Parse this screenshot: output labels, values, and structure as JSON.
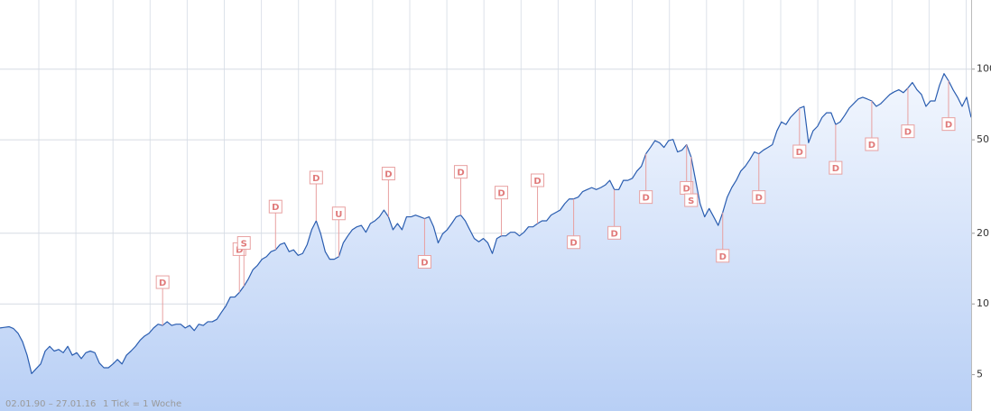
{
  "chart_data": {
    "type": "line",
    "log_scale": true,
    "grid": true,
    "color": "#2a5db0",
    "ylim": [
      3.5,
      197
    ],
    "yticks": [
      5,
      10,
      20,
      50,
      100
    ],
    "period": "02.01.90 – 27.01.16",
    "tick_note": "1 Tick = 1 Woche",
    "values": [
      7.9,
      7.95,
      8.0,
      7.85,
      7.5,
      6.9,
      6.05,
      5.05,
      5.3,
      5.55,
      6.3,
      6.6,
      6.3,
      6.4,
      6.2,
      6.6,
      6.05,
      6.2,
      5.85,
      6.2,
      6.3,
      6.2,
      5.6,
      5.35,
      5.35,
      5.55,
      5.8,
      5.55,
      6.05,
      6.3,
      6.6,
      7.0,
      7.3,
      7.5,
      7.9,
      8.2,
      8.1,
      8.4,
      8.1,
      8.2,
      8.2,
      7.9,
      8.1,
      7.7,
      8.2,
      8.1,
      8.4,
      8.4,
      8.6,
      9.2,
      9.8,
      10.7,
      10.7,
      11.2,
      11.9,
      12.8,
      14.0,
      14.6,
      15.5,
      15.9,
      16.7,
      17.0,
      17.9,
      18.2,
      16.7,
      17.0,
      16.1,
      16.4,
      17.9,
      20.7,
      22.6,
      19.9,
      16.7,
      15.5,
      15.5,
      15.9,
      18.2,
      19.5,
      20.7,
      21.3,
      21.6,
      20.2,
      22.0,
      22.6,
      23.5,
      25.1,
      23.5,
      20.7,
      22.0,
      20.7,
      23.5,
      23.5,
      23.9,
      23.5,
      23.1,
      23.5,
      21.3,
      18.2,
      19.9,
      20.7,
      22.0,
      23.5,
      23.9,
      22.6,
      20.7,
      19.0,
      18.4,
      19.0,
      18.2,
      16.4,
      19.0,
      19.5,
      19.5,
      20.2,
      20.2,
      19.5,
      20.2,
      21.3,
      21.3,
      22.0,
      22.6,
      22.6,
      23.9,
      24.5,
      25.1,
      26.7,
      28.0,
      28.0,
      28.5,
      30.1,
      30.7,
      31.3,
      30.7,
      31.3,
      32.1,
      33.6,
      30.7,
      30.7,
      33.6,
      33.6,
      34.3,
      36.8,
      38.6,
      43.6,
      46.4,
      49.6,
      48.6,
      46.4,
      49.6,
      50.2,
      44.4,
      45.2,
      47.7,
      42.3,
      33.6,
      26.7,
      23.5,
      25.5,
      23.5,
      21.6,
      24.5,
      28.5,
      31.3,
      33.6,
      36.8,
      38.6,
      41.2,
      44.4,
      43.6,
      45.2,
      46.4,
      47.7,
      54.6,
      59.6,
      58.1,
      62.3,
      65.2,
      68.2,
      69.4,
      48.6,
      54.6,
      57.1,
      62.3,
      65.2,
      65.2,
      58.1,
      59.6,
      63.5,
      68.2,
      71.3,
      74.6,
      75.9,
      74.6,
      73.2,
      69.4,
      71.3,
      74.6,
      78.0,
      80.1,
      81.7,
      79.4,
      83.1,
      87.7,
      81.7,
      78.0,
      69.4,
      73.2,
      73.2,
      85.4,
      95.7,
      89.2,
      81.7,
      75.9,
      69.4,
      75.9,
      62.3
    ],
    "events": [
      {
        "label": "D",
        "index": 36,
        "side": "up"
      },
      {
        "label": "D",
        "index": 53,
        "side": "up"
      },
      {
        "label": "S",
        "index": 54,
        "side": "up"
      },
      {
        "label": "D",
        "index": 61,
        "side": "up"
      },
      {
        "label": "D",
        "index": 70,
        "side": "up"
      },
      {
        "label": "U",
        "index": 75,
        "side": "up"
      },
      {
        "label": "D",
        "index": 86,
        "side": "up"
      },
      {
        "label": "D",
        "index": 94,
        "side": "down"
      },
      {
        "label": "D",
        "index": 102,
        "side": "up"
      },
      {
        "label": "D",
        "index": 111,
        "side": "up"
      },
      {
        "label": "D",
        "index": 119,
        "side": "up"
      },
      {
        "label": "D",
        "index": 127,
        "side": "down"
      },
      {
        "label": "D",
        "index": 136,
        "side": "down"
      },
      {
        "label": "D",
        "index": 143,
        "side": "down"
      },
      {
        "label": "D",
        "index": 152,
        "side": "down"
      },
      {
        "label": "S",
        "index": 153,
        "side": "down"
      },
      {
        "label": "D",
        "index": 160,
        "side": "down"
      },
      {
        "label": "D",
        "index": 168,
        "side": "down"
      },
      {
        "label": "D",
        "index": 177,
        "side": "down"
      },
      {
        "label": "D",
        "index": 185,
        "side": "down"
      },
      {
        "label": "D",
        "index": 193,
        "side": "down"
      },
      {
        "label": "D",
        "index": 201,
        "side": "down"
      },
      {
        "label": "D",
        "index": 210,
        "side": "down"
      }
    ]
  }
}
